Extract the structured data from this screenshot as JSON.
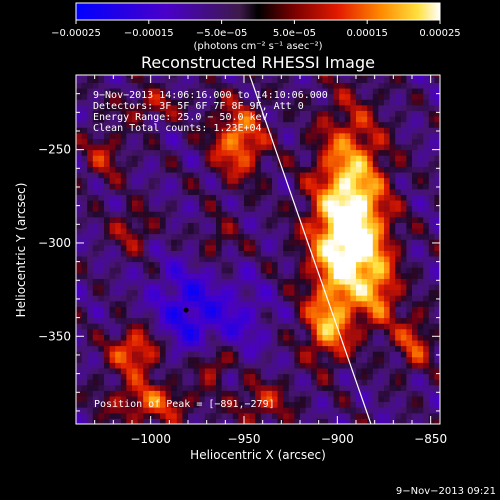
{
  "chart_data": {
    "type": "heatmap",
    "title": "Reconstructed RHESSI Image",
    "xlabel": "Heliocentric X (arcsec)",
    "ylabel": "Heliocentric Y (arcsec)",
    "xlim": [
      -1040,
      -845
    ],
    "ylim": [
      -397,
      -210
    ],
    "x_ticks": [
      {
        "value": -1000,
        "label": "−1000"
      },
      {
        "value": -950,
        "label": "−950"
      },
      {
        "value": -900,
        "label": "−900"
      },
      {
        "value": -850,
        "label": "−850"
      }
    ],
    "y_ticks": [
      {
        "value": -250,
        "label": "−250"
      },
      {
        "value": -300,
        "label": "−300"
      },
      {
        "value": -350,
        "label": "−350"
      }
    ],
    "colorbar": {
      "range": [
        -0.00025,
        0.00025
      ],
      "ticks": [
        {
          "value": -0.00025,
          "label": "−0.00025"
        },
        {
          "value": -0.00015,
          "label": "−0.00015"
        },
        {
          "value": -5e-05,
          "label": "−5.0e−05"
        },
        {
          "value": 5e-05,
          "label": "5.0e−05"
        },
        {
          "value": 0.00015,
          "label": "0.00015"
        },
        {
          "value": 0.00025,
          "label": "0.00025"
        }
      ],
      "unit_label": "(photons cm⁻² s⁻¹ asec⁻²)"
    },
    "info_lines": [
      "9−Nov−2013 14:06:16.000 to 14:10:06.000",
      "Detectors: 3F 5F 6F 7F 8F 9F, Att 0",
      "Energy Range: 25.0 − 50.0 keV",
      "Clean     Total counts: 1.23E+04"
    ],
    "peak_label": "Position of Peak = [−891,−279]",
    "peak": {
      "x": -891,
      "y": -279
    },
    "marker": {
      "x": -981,
      "y": -336
    },
    "limb_line": [
      {
        "x": -947,
        "y": -210
      },
      {
        "x": -882,
        "y": -397
      }
    ],
    "sources": [
      {
        "x": -893,
        "y": -275,
        "intensity": 1.0,
        "sx": 13,
        "sy": 32
      },
      {
        "x": -895,
        "y": -305,
        "intensity": 0.8,
        "sx": 14,
        "sy": 20
      },
      {
        "x": -953,
        "y": -245,
        "intensity": 0.78,
        "sx": 10,
        "sy": 14
      },
      {
        "x": -905,
        "y": -345,
        "intensity": 0.75,
        "sx": 9,
        "sy": 13
      },
      {
        "x": -1008,
        "y": -358,
        "intensity": 0.72,
        "sx": 10,
        "sy": 9
      },
      {
        "x": -1000,
        "y": -385,
        "intensity": 0.6,
        "sx": 16,
        "sy": 8
      },
      {
        "x": -967,
        "y": -364,
        "intensity": 0.55,
        "sx": 7,
        "sy": 7
      },
      {
        "x": -877,
        "y": -327,
        "intensity": 0.5,
        "sx": 7,
        "sy": 13
      },
      {
        "x": -859,
        "y": -353,
        "intensity": 0.55,
        "sx": 7,
        "sy": 11
      },
      {
        "x": -940,
        "y": -385,
        "intensity": 0.45,
        "sx": 11,
        "sy": 8
      },
      {
        "x": -1010,
        "y": -293,
        "intensity": 0.4,
        "sx": 8,
        "sy": 8
      },
      {
        "x": -1025,
        "y": -253,
        "intensity": 0.4,
        "sx": 8,
        "sy": 10
      },
      {
        "x": -1000,
        "y": -226,
        "intensity": 0.38,
        "sx": 12,
        "sy": 6
      },
      {
        "x": -965,
        "y": -300,
        "intensity": 0.3,
        "sx": 8,
        "sy": 9
      },
      {
        "x": -980,
        "y": -336,
        "intensity": -0.55,
        "sx": 13,
        "sy": 18
      },
      {
        "x": -952,
        "y": -340,
        "intensity": -0.3,
        "sx": 11,
        "sy": 14
      }
    ]
  },
  "footer_timestamp": "9−Nov−2013 09:21"
}
